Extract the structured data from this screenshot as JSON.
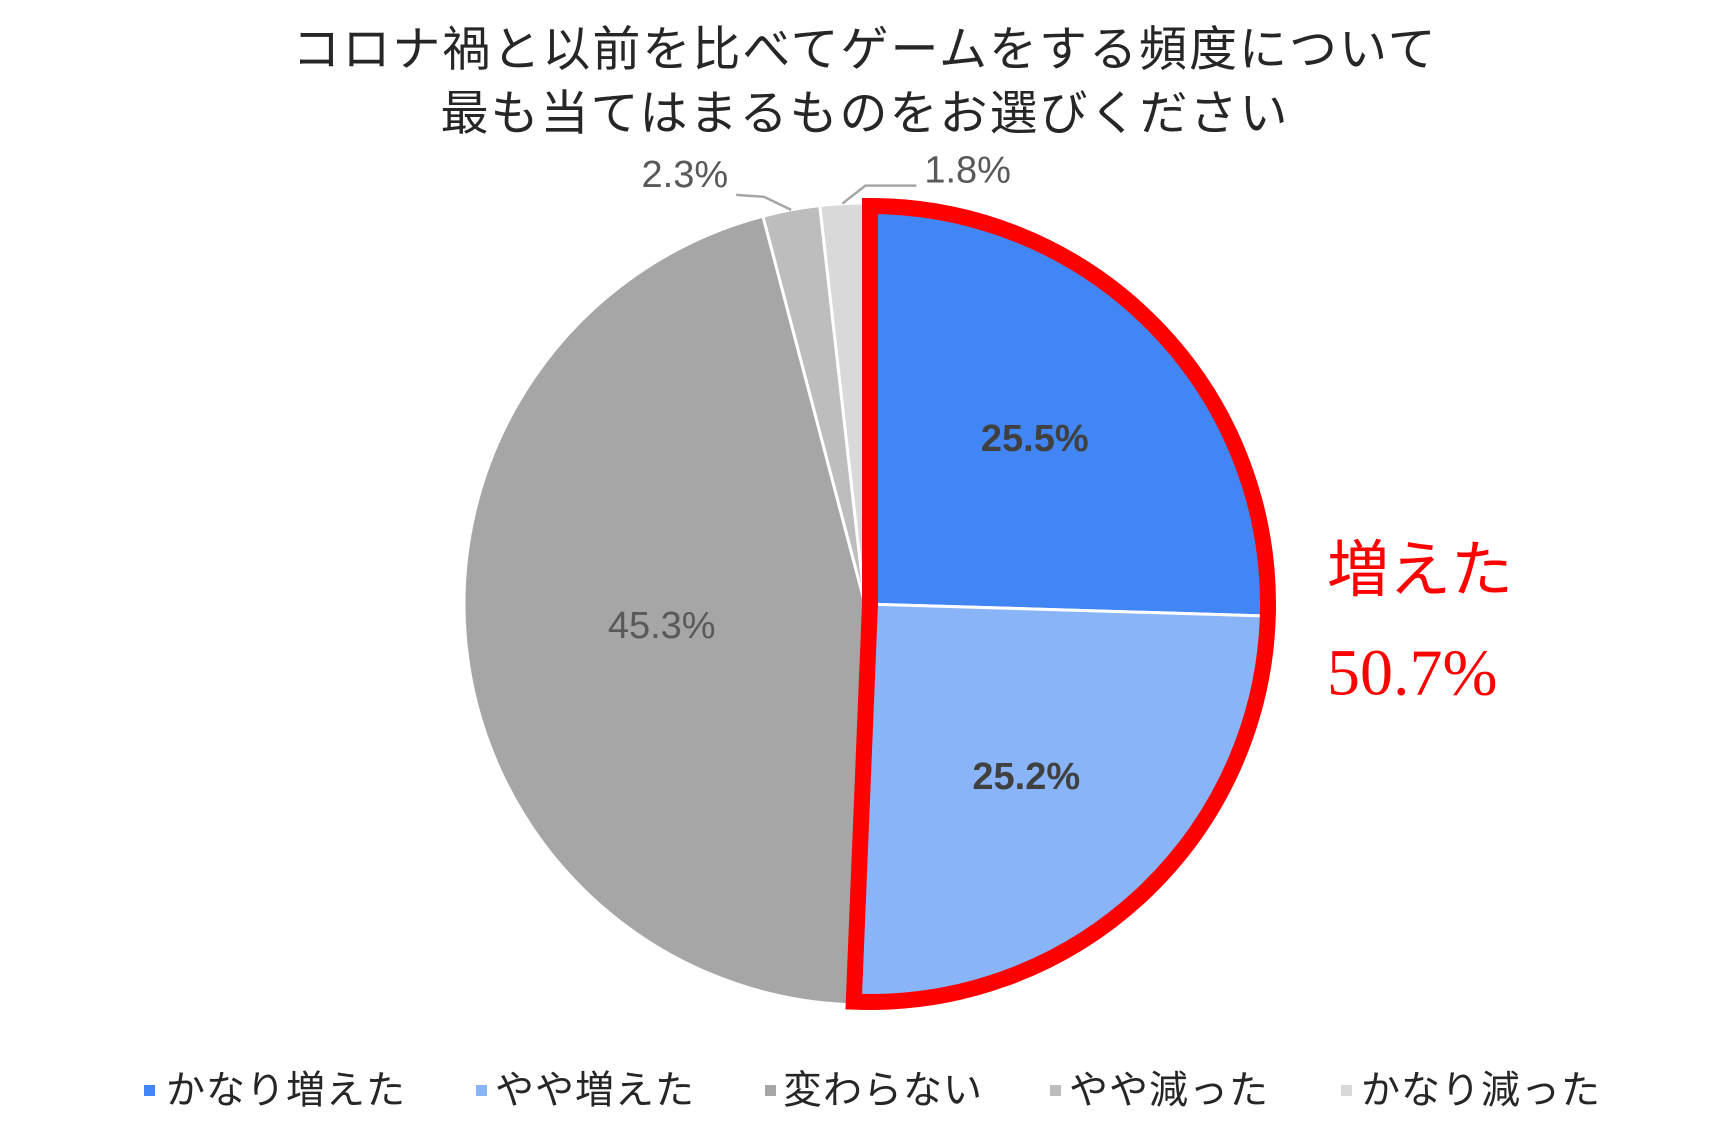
{
  "chart_data": {
    "type": "pie",
    "title": [
      "コロナ禍と以前を比べてゲームをする頻度について",
      "最も当てはまるものをお選びください"
    ],
    "categories": [
      "かなり増えた",
      "やや増えた",
      "変わらない",
      "やや減った",
      "かなり減った"
    ],
    "values": [
      25.5,
      25.2,
      45.3,
      2.3,
      1.8
    ],
    "data_labels": [
      "25.5%",
      "25.2%",
      "45.3%",
      "2.3%",
      "1.8%"
    ],
    "colors": [
      "#4285f4",
      "#8ab4f8",
      "#a6a6a6",
      "#bdbdbd",
      "#d9d9d9"
    ],
    "legend_position": "bottom",
    "annotation": {
      "label": "増えた",
      "value": "50.7%",
      "color": "#ff0000"
    }
  }
}
